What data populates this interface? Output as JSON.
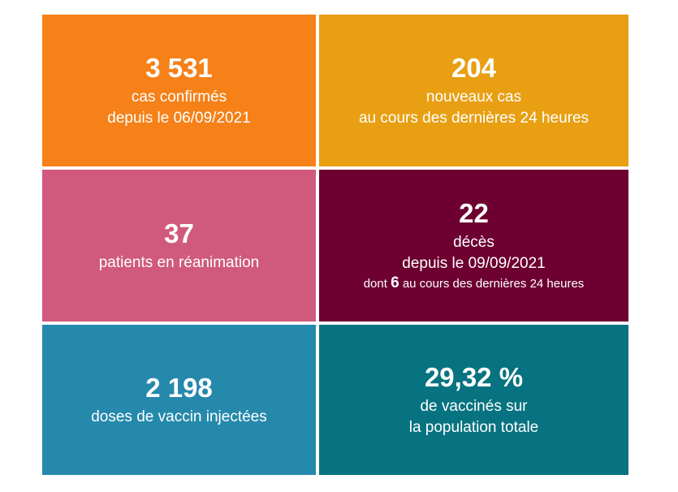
{
  "colors": {
    "tile1": "#f58118",
    "tile2": "#e89f12",
    "tile3": "#cf5a7d",
    "tile4": "#6d0031",
    "tile5": "#2589ac",
    "tile6": "#087380"
  },
  "tiles": [
    {
      "value": "3 531",
      "line1": "cas confirmés",
      "line2": "depuis le 06/09/2021"
    },
    {
      "value": "204",
      "line1": "nouveaux cas",
      "line2": "au cours des dernières 24 heures"
    },
    {
      "value": "37",
      "line1": "patients en réanimation"
    },
    {
      "value": "22",
      "line1": "décès",
      "line2": "depuis le 09/09/2021",
      "note_prefix": "dont",
      "note_value": "6",
      "note_suffix": "au cours des dernières 24 heures"
    },
    {
      "value": "2 198",
      "line1": "doses de vaccin injectées"
    },
    {
      "value": "29,32 %",
      "line1": "de vaccinés sur",
      "line2": "la population totale"
    }
  ]
}
